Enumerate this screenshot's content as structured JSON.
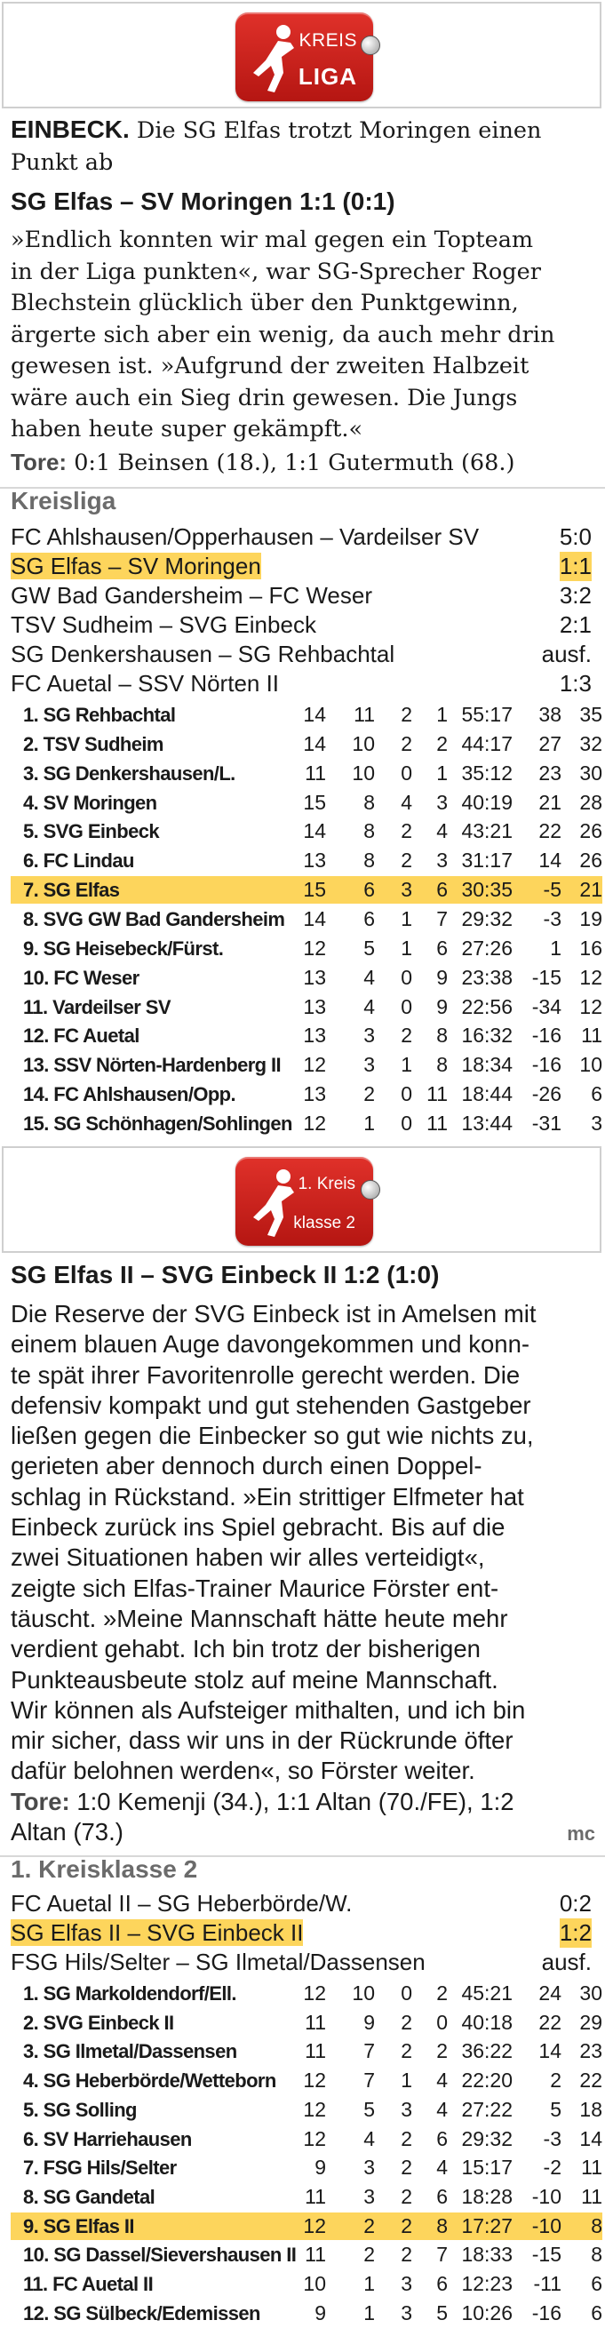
{
  "logo1": {
    "line1": "KREIS",
    "line2": "LIGA"
  },
  "article1": {
    "dateline": "EINBECK.",
    "lead": "Die SG Elfas trotzt Moringen einen Punkt ab",
    "match": "SG Elfas – SV Moringen 1:1 (0:1)",
    "body_lines": [
      "»Endlich konnten wir mal gegen ein Topteam",
      "in der Liga punkten«, war SG-Sprecher Roger",
      "Blechstein glücklich über den Punktgewinn,",
      "ärgerte sich aber ein wenig, da auch mehr drin",
      "gewesen ist. »Aufgrund der zweiten Halbzeit",
      "wäre auch ein Sieg drin gewesen. Die Jungs",
      "haben heute super gekämpft.«"
    ],
    "tore_label": "Tore:",
    "tore_text": "0:1 Beinsen (18.), 1:1 Gutermuth (68.)"
  },
  "kreisliga": {
    "title": "Kreisliga",
    "results": [
      {
        "match": "FC Ahlshausen/Opperhausen – Vardeilser SV",
        "score": "5:0",
        "highlight": false
      },
      {
        "match": "SG Elfas – SV Moringen",
        "score": "1:1",
        "highlight": true
      },
      {
        "match": "GW Bad Gandersheim – FC Weser",
        "score": "3:2",
        "highlight": false
      },
      {
        "match": "TSV Sudheim – SVG Einbeck",
        "score": "2:1",
        "highlight": false
      },
      {
        "match": "SG Denkershausen – SG Rehbachtal",
        "score": "ausf.",
        "highlight": false
      },
      {
        "match": "FC Auetal – SSV Nörten II",
        "score": "1:3",
        "highlight": false
      }
    ],
    "table": [
      {
        "team": "1. SG Rehbachtal",
        "p": "14",
        "w": "11",
        "d": "2",
        "l": "1",
        "goals": "55:17",
        "diff": "38",
        "pts": "35",
        "highlight": false
      },
      {
        "team": "2. TSV Sudheim",
        "p": "14",
        "w": "10",
        "d": "2",
        "l": "2",
        "goals": "44:17",
        "diff": "27",
        "pts": "32",
        "highlight": false
      },
      {
        "team": "3. SG Denkershausen/L.",
        "p": "11",
        "w": "10",
        "d": "0",
        "l": "1",
        "goals": "35:12",
        "diff": "23",
        "pts": "30",
        "highlight": false
      },
      {
        "team": "4. SV Moringen",
        "p": "15",
        "w": "8",
        "d": "4",
        "l": "3",
        "goals": "40:19",
        "diff": "21",
        "pts": "28",
        "highlight": false
      },
      {
        "team": "5. SVG Einbeck",
        "p": "14",
        "w": "8",
        "d": "2",
        "l": "4",
        "goals": "43:21",
        "diff": "22",
        "pts": "26",
        "highlight": false
      },
      {
        "team": "6. FC Lindau",
        "p": "13",
        "w": "8",
        "d": "2",
        "l": "3",
        "goals": "31:17",
        "diff": "14",
        "pts": "26",
        "highlight": false
      },
      {
        "team": "7. SG Elfas",
        "p": "15",
        "w": "6",
        "d": "3",
        "l": "6",
        "goals": "30:35",
        "diff": "-5",
        "pts": "21",
        "highlight": true
      },
      {
        "team": "8. SVG GW Bad Gandersheim",
        "p": "14",
        "w": "6",
        "d": "1",
        "l": "7",
        "goals": "29:32",
        "diff": "-3",
        "pts": "19",
        "highlight": false
      },
      {
        "team": "9. SG Heisebeck/Fürst.",
        "p": "12",
        "w": "5",
        "d": "1",
        "l": "6",
        "goals": "27:26",
        "diff": "1",
        "pts": "16",
        "highlight": false
      },
      {
        "team": "10. FC Weser",
        "p": "13",
        "w": "4",
        "d": "0",
        "l": "9",
        "goals": "23:38",
        "diff": "-15",
        "pts": "12",
        "highlight": false
      },
      {
        "team": "11. Vardeilser SV",
        "p": "13",
        "w": "4",
        "d": "0",
        "l": "9",
        "goals": "22:56",
        "diff": "-34",
        "pts": "12",
        "highlight": false
      },
      {
        "team": "12. FC Auetal",
        "p": "13",
        "w": "3",
        "d": "2",
        "l": "8",
        "goals": "16:32",
        "diff": "-16",
        "pts": "11",
        "highlight": false
      },
      {
        "team": "13. SSV Nörten-Hardenberg II",
        "p": "12",
        "w": "3",
        "d": "1",
        "l": "8",
        "goals": "18:34",
        "diff": "-16",
        "pts": "10",
        "highlight": false
      },
      {
        "team": "14. FC Ahlshausen/Opp.",
        "p": "13",
        "w": "2",
        "d": "0",
        "l": "11",
        "goals": "18:44",
        "diff": "-26",
        "pts": "6",
        "highlight": false
      },
      {
        "team": "15. SG Schönhagen/Sohlingen",
        "p": "12",
        "w": "1",
        "d": "0",
        "l": "11",
        "goals": "13:44",
        "diff": "-31",
        "pts": "3",
        "highlight": false
      }
    ]
  },
  "logo2": {
    "line1": "1. Kreis",
    "line2": "klasse 2"
  },
  "article2": {
    "match": "SG Elfas II – SVG Einbeck II 1:2 (1:0)",
    "body_lines": [
      "Die Reserve der SVG Einbeck ist in Amelsen mit",
      "einem blauen Auge davongekommen und konn-",
      "te spät ihrer Favoritenrolle gerecht werden. Die",
      "defensiv kompakt und gut stehenden Gastgeber",
      "ließen gegen die Einbecker so gut wie nichts zu,",
      "gerieten aber dennoch durch einen Doppel-",
      "schlag in Rückstand. »Ein strittiger Elfmeter hat",
      "Einbeck zurück ins Spiel gebracht. Bis auf die",
      "zwei Situationen haben wir alles verteidigt«,",
      "zeigte sich Elfas-Trainer Maurice Förster ent-",
      "täuscht. »Meine Mannschaft hätte heute mehr",
      "verdient gehabt. Ich bin trotz der bisherigen",
      "Punkteausbeute stolz auf meine Mannschaft.",
      "Wir können als Aufsteiger mithalten, und ich bin",
      "mir sicher, dass wir uns in der Rückrunde öfter",
      "dafür belohnen werden«, so Förster weiter."
    ],
    "tore_label": "Tore:",
    "tore_line1": "1:0 Kemenji (34.), 1:1 Altan (70./FE), 1:2",
    "tore_line2": "Altan (73.)",
    "author": "mc"
  },
  "kreisklasse": {
    "title": "1. Kreisklasse 2",
    "results": [
      {
        "match": "FC Auetal II – SG Heberbörde/W.",
        "score": "0:2",
        "highlight": false
      },
      {
        "match": "SG Elfas II – SVG Einbeck II",
        "score": "1:2",
        "highlight": true
      },
      {
        "match": "FSG Hils/Selter – SG Ilmetal/Dassensen",
        "score": "ausf.",
        "highlight": false
      }
    ],
    "table": [
      {
        "team": "1. SG Markoldendorf/Ell.",
        "p": "12",
        "w": "10",
        "d": "0",
        "l": "2",
        "goals": "45:21",
        "diff": "24",
        "pts": "30",
        "highlight": false
      },
      {
        "team": "2. SVG Einbeck II",
        "p": "11",
        "w": "9",
        "d": "2",
        "l": "0",
        "goals": "40:18",
        "diff": "22",
        "pts": "29",
        "highlight": false
      },
      {
        "team": "3. SG Ilmetal/Dassensen",
        "p": "11",
        "w": "7",
        "d": "2",
        "l": "2",
        "goals": "36:22",
        "diff": "14",
        "pts": "23",
        "highlight": false
      },
      {
        "team": "4. SG Heberbörde/Wetteborn",
        "p": "12",
        "w": "7",
        "d": "1",
        "l": "4",
        "goals": "22:20",
        "diff": "2",
        "pts": "22",
        "highlight": false
      },
      {
        "team": "5. SG Solling",
        "p": "12",
        "w": "5",
        "d": "3",
        "l": "4",
        "goals": "27:22",
        "diff": "5",
        "pts": "18",
        "highlight": false
      },
      {
        "team": "6. SV Harriehausen",
        "p": "12",
        "w": "4",
        "d": "2",
        "l": "6",
        "goals": "29:32",
        "diff": "-3",
        "pts": "14",
        "highlight": false
      },
      {
        "team": "7. FSG Hils/Selter",
        "p": "9",
        "w": "3",
        "d": "2",
        "l": "4",
        "goals": "15:17",
        "diff": "-2",
        "pts": "11",
        "highlight": false
      },
      {
        "team": "8. SG Gandetal",
        "p": "11",
        "w": "3",
        "d": "2",
        "l": "6",
        "goals": "18:28",
        "diff": "-10",
        "pts": "11",
        "highlight": false
      },
      {
        "team": "9. SG Elfas II",
        "p": "12",
        "w": "2",
        "d": "2",
        "l": "8",
        "goals": "17:27",
        "diff": "-10",
        "pts": "8",
        "highlight": true
      },
      {
        "team": "10. SG Dassel/Sievershausen II",
        "p": "11",
        "w": "2",
        "d": "2",
        "l": "7",
        "goals": "18:33",
        "diff": "-15",
        "pts": "8",
        "highlight": false
      },
      {
        "team": "11. FC Auetal II",
        "p": "10",
        "w": "1",
        "d": "3",
        "l": "6",
        "goals": "12:23",
        "diff": "-11",
        "pts": "6",
        "highlight": false
      },
      {
        "team": "12. SG Sülbeck/Edemissen",
        "p": "9",
        "w": "1",
        "d": "3",
        "l": "5",
        "goals": "10:26",
        "diff": "-16",
        "pts": "6",
        "highlight": false
      }
    ]
  },
  "colors": {
    "highlight": "#fdd55c",
    "logo_red": "#c91d17",
    "section_gray": "#6b6b6b"
  }
}
